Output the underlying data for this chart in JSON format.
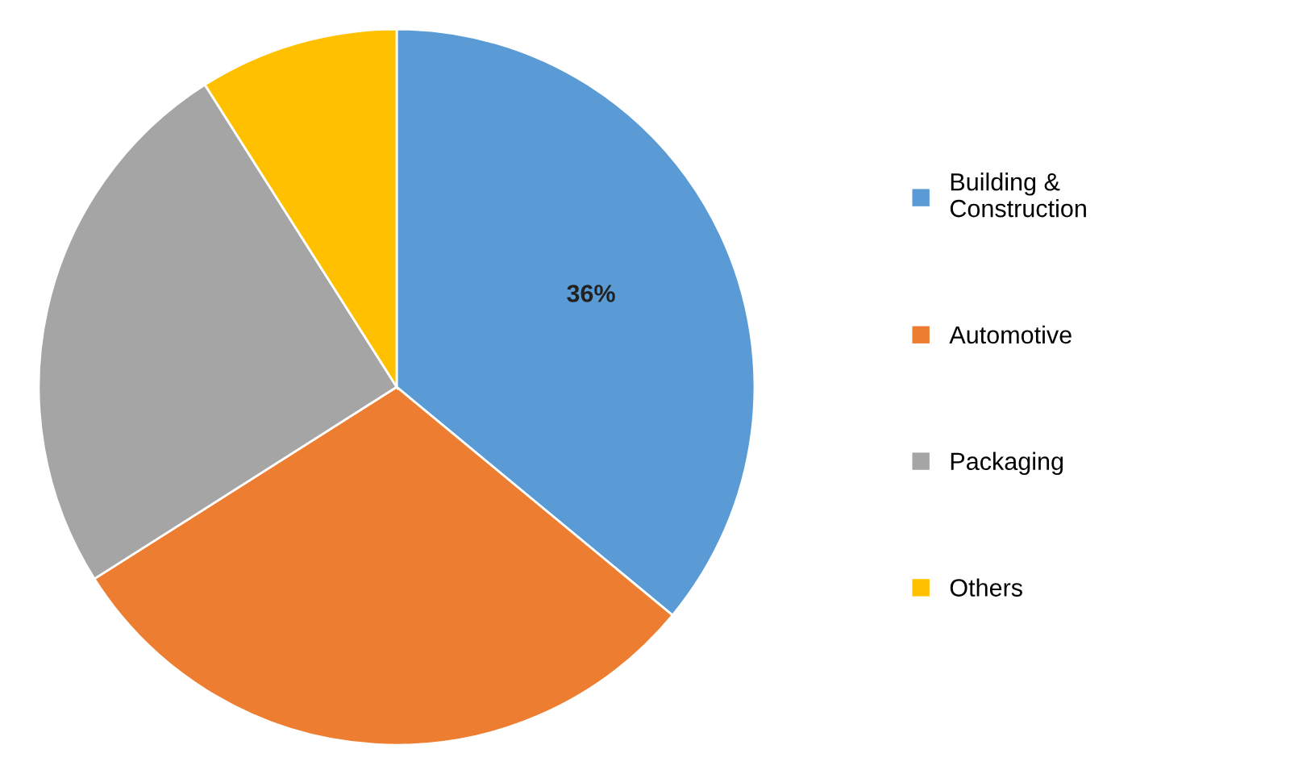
{
  "chart_data": {
    "type": "pie",
    "categories": [
      "Building & Construction",
      "Automotive",
      "Packaging",
      "Others"
    ],
    "values": [
      36,
      30,
      25,
      9
    ],
    "colors": [
      "#5b9bd5",
      "#ed7d31",
      "#a5a5a5",
      "#ffc000"
    ],
    "value_labels": [
      "36%",
      null,
      null,
      null
    ],
    "legend": "right"
  }
}
